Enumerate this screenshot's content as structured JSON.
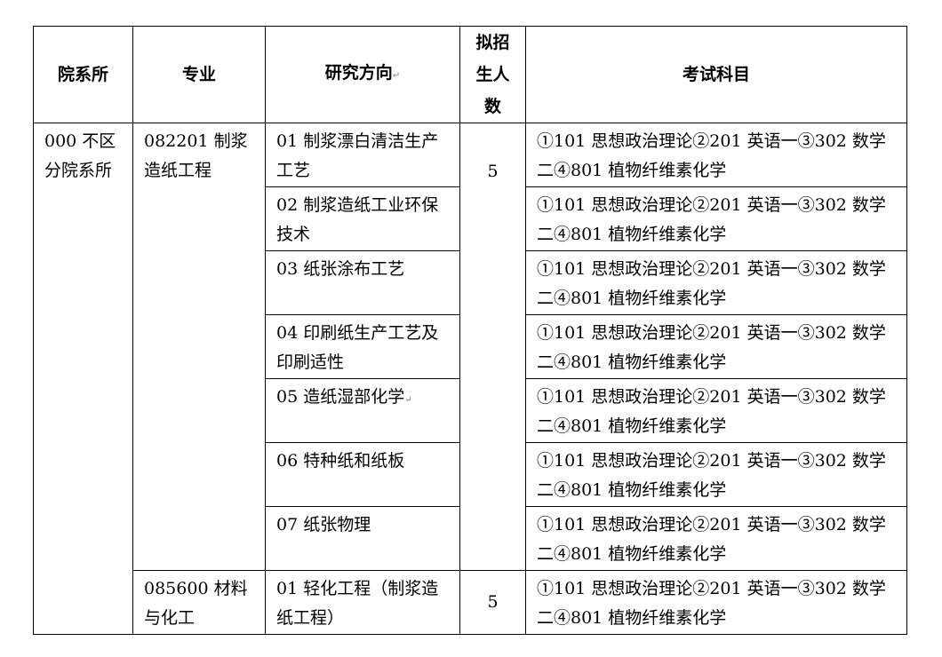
{
  "headers": {
    "dept": "院系所",
    "major": "专业",
    "direction": "研究方向",
    "quota": "拟招生人数",
    "exam": "考试科目",
    "direction_mark": "↵"
  },
  "dept": "000 不区分院系所",
  "majors": [
    {
      "name": "082201 制浆造纸工程",
      "quota": "5",
      "directions": [
        {
          "name": "01 制浆漂白清洁生产工艺",
          "exam": "①101 思想政治理论②201 英语一③302 数学二④801 植物纤维素化学"
        },
        {
          "name": "02 制浆造纸工业环保技术",
          "exam": "①101 思想政治理论②201 英语一③302 数学二④801 植物纤维素化学"
        },
        {
          "name": "03 纸张涂布工艺",
          "exam": "①101 思想政治理论②201 英语一③302 数学二④801 植物纤维素化学"
        },
        {
          "name": "04 印刷纸生产工艺及印刷适性",
          "exam": "①101 思想政治理论②201 英语一③302 数学二④801 植物纤维素化学"
        },
        {
          "name": "05 造纸湿部化学",
          "mark": "↵",
          "exam": "①101 思想政治理论②201 英语一③302 数学二④801 植物纤维素化学"
        },
        {
          "name": "06 特种纸和纸板",
          "exam": "①101 思想政治理论②201 英语一③302 数学二④801 植物纤维素化学"
        },
        {
          "name": "07 纸张物理",
          "exam": "①101 思想政治理论②201 英语一③302 数学二④801 植物纤维素化学"
        }
      ]
    },
    {
      "name": "085600 材料与化工",
      "quota": "5",
      "directions": [
        {
          "name": "01 轻化工程（制浆造纸工程）",
          "exam": "①101 思想政治理论②201 英语一③302 数学二④801 植物纤维素化学"
        }
      ]
    }
  ]
}
